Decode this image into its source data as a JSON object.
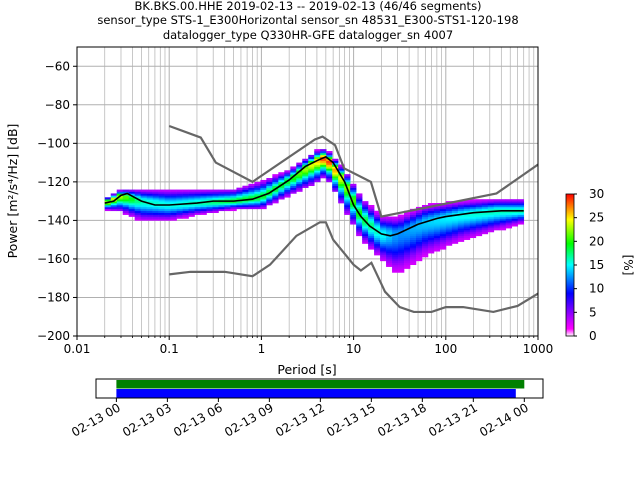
{
  "chart_data": {
    "type": "heatmap",
    "title_lines": [
      "BK.BKS.00.HHE   2019-02-13 -- 2019-02-13  (46/46 segments)",
      "sensor_type STS-1_E300Horizontal sensor_sn 48531_E300-STS1-120-198",
      "datalogger_type Q330HR-GFE datalogger_sn 4007"
    ],
    "xlabel": "Period [s]",
    "ylabel": "Power [m²/s⁴/Hz] [dB]",
    "x_scale": "log",
    "xlim": [
      0.01,
      1000
    ],
    "ylim": [
      -200,
      -50
    ],
    "x_ticks": [
      {
        "value": 0.01,
        "label": "0.01"
      },
      {
        "value": 0.1,
        "label": "0.1"
      },
      {
        "value": 1,
        "label": "1"
      },
      {
        "value": 10,
        "label": "10"
      },
      {
        "value": 100,
        "label": "100"
      },
      {
        "value": 1000,
        "label": "1000"
      }
    ],
    "y_ticks": [
      {
        "value": -60,
        "label": "−60"
      },
      {
        "value": -80,
        "label": "−80"
      },
      {
        "value": -100,
        "label": "−100"
      },
      {
        "value": -120,
        "label": "−120"
      },
      {
        "value": -140,
        "label": "−140"
      },
      {
        "value": -160,
        "label": "−160"
      },
      {
        "value": -180,
        "label": "−180"
      },
      {
        "value": -200,
        "label": "−200"
      }
    ],
    "grid": true,
    "colorbar": {
      "label": "[%]",
      "min": 0,
      "max": 30,
      "ticks": [
        {
          "value": 0,
          "label": "0"
        },
        {
          "value": 5,
          "label": "5"
        },
        {
          "value": 10,
          "label": "10"
        },
        {
          "value": 15,
          "label": "15"
        },
        {
          "value": 20,
          "label": "20"
        },
        {
          "value": 25,
          "label": "25"
        },
        {
          "value": 30,
          "label": "30"
        }
      ],
      "colors": [
        "#ffffff",
        "#ff00ff",
        "#0000ff",
        "#00ffff",
        "#00ff00",
        "#ffff00",
        "#ff0000"
      ]
    },
    "high_noise_model": [
      [
        0.1,
        -91
      ],
      [
        0.22,
        -97
      ],
      [
        0.32,
        -110
      ],
      [
        0.8,
        -120
      ],
      [
        3.8,
        -98
      ],
      [
        4.6,
        -96.5
      ],
      [
        6.3,
        -101
      ],
      [
        7.9,
        -113
      ],
      [
        15.4,
        -120
      ],
      [
        20,
        -138
      ],
      [
        354.8,
        -126
      ],
      [
        1000,
        -111
      ]
    ],
    "low_noise_model": [
      [
        0.1,
        -168
      ],
      [
        0.17,
        -166.7
      ],
      [
        0.4,
        -166.7
      ],
      [
        0.8,
        -169
      ],
      [
        1.24,
        -163
      ],
      [
        2.4,
        -148
      ],
      [
        4.3,
        -141
      ],
      [
        5,
        -141
      ],
      [
        6,
        -150
      ],
      [
        10,
        -163
      ],
      [
        12,
        -166
      ],
      [
        15.6,
        -162
      ],
      [
        21.9,
        -177
      ],
      [
        31.6,
        -185
      ],
      [
        45,
        -187.5
      ],
      [
        70,
        -187.5
      ],
      [
        100,
        -185
      ],
      [
        154,
        -185
      ],
      [
        328,
        -187.5
      ],
      [
        600,
        -184.4
      ],
      [
        1000,
        -178
      ]
    ],
    "median_psd": [
      [
        0.02,
        -131
      ],
      [
        0.025,
        -130
      ],
      [
        0.03,
        -127
      ],
      [
        0.035,
        -126
      ],
      [
        0.05,
        -130
      ],
      [
        0.07,
        -132
      ],
      [
        0.1,
        -132
      ],
      [
        0.2,
        -131
      ],
      [
        0.3,
        -130
      ],
      [
        0.5,
        -130
      ],
      [
        0.8,
        -129
      ],
      [
        1.2,
        -126
      ],
      [
        2,
        -119
      ],
      [
        3,
        -112
      ],
      [
        4,
        -109
      ],
      [
        5,
        -107
      ],
      [
        6,
        -110
      ],
      [
        8,
        -120
      ],
      [
        10,
        -132
      ],
      [
        12,
        -138
      ],
      [
        15,
        -143
      ],
      [
        20,
        -147
      ],
      [
        25,
        -148
      ],
      [
        30,
        -147
      ],
      [
        50,
        -142
      ],
      [
        80,
        -139
      ],
      [
        100,
        -138
      ],
      [
        200,
        -136
      ],
      [
        400,
        -135
      ],
      [
        700,
        -135
      ]
    ],
    "psd_density": {
      "description": "probability density of power vs period, percent of segments",
      "columns": [
        {
          "period": 0.02,
          "low": -134,
          "high": -129,
          "peak": -131,
          "max_pct": 25
        },
        {
          "period": 0.03,
          "low": -135,
          "high": -124,
          "peak": -127,
          "max_pct": 22
        },
        {
          "period": 0.05,
          "low": -140,
          "high": -124,
          "peak": -130,
          "max_pct": 15
        },
        {
          "period": 0.1,
          "low": -140,
          "high": -124,
          "peak": -132,
          "max_pct": 14
        },
        {
          "period": 0.2,
          "low": -137,
          "high": -124,
          "peak": -131,
          "max_pct": 15
        },
        {
          "period": 0.5,
          "low": -134,
          "high": -124,
          "peak": -130,
          "max_pct": 18
        },
        {
          "period": 1,
          "low": -134,
          "high": -120,
          "peak": -128,
          "max_pct": 18
        },
        {
          "period": 2,
          "low": -127,
          "high": -114,
          "peak": -119,
          "max_pct": 18
        },
        {
          "period": 4,
          "low": -120,
          "high": -104,
          "peak": -109,
          "max_pct": 25
        },
        {
          "period": 5,
          "low": -116,
          "high": -103,
          "peak": -107,
          "max_pct": 30
        },
        {
          "period": 8,
          "low": -134,
          "high": -114,
          "peak": -120,
          "max_pct": 22
        },
        {
          "period": 12,
          "low": -149,
          "high": -128,
          "peak": -138,
          "max_pct": 18
        },
        {
          "period": 20,
          "low": -160,
          "high": -138,
          "peak": -147,
          "max_pct": 14
        },
        {
          "period": 30,
          "low": -168,
          "high": -138,
          "peak": -147,
          "max_pct": 10
        },
        {
          "period": 60,
          "low": -158,
          "high": -132,
          "peak": -141,
          "max_pct": 12
        },
        {
          "period": 150,
          "low": -150,
          "high": -130,
          "peak": -137,
          "max_pct": 14
        },
        {
          "period": 350,
          "low": -145,
          "high": -129,
          "peak": -135,
          "max_pct": 15
        },
        {
          "period": 700,
          "low": -141,
          "high": -129,
          "peak": -135,
          "max_pct": 15
        }
      ]
    },
    "time_axis": {
      "start": "2019-02-13 00:00",
      "end": "2019-02-14 00:00",
      "tick_labels": [
        "02-13 00",
        "02-13 03",
        "02-13 06",
        "02-13 09",
        "02-13 12",
        "02-13 15",
        "02-13 18",
        "02-13 21",
        "02-14 00"
      ],
      "tick_hours": [
        0,
        3,
        6,
        9,
        12,
        15,
        18,
        21,
        24
      ],
      "bar_range_hours": [
        -1.2,
        25.1
      ],
      "coverage": [
        {
          "name": "data available",
          "color": "#008000",
          "start_hour": 0,
          "end_hour": 24
        },
        {
          "name": "data used",
          "color": "#0000ff",
          "start_hour": 0,
          "end_hour": 23.5
        }
      ]
    },
    "colors": {
      "noise_models": "#666666",
      "median": "#000000",
      "grid": "#b0b0b0"
    }
  }
}
